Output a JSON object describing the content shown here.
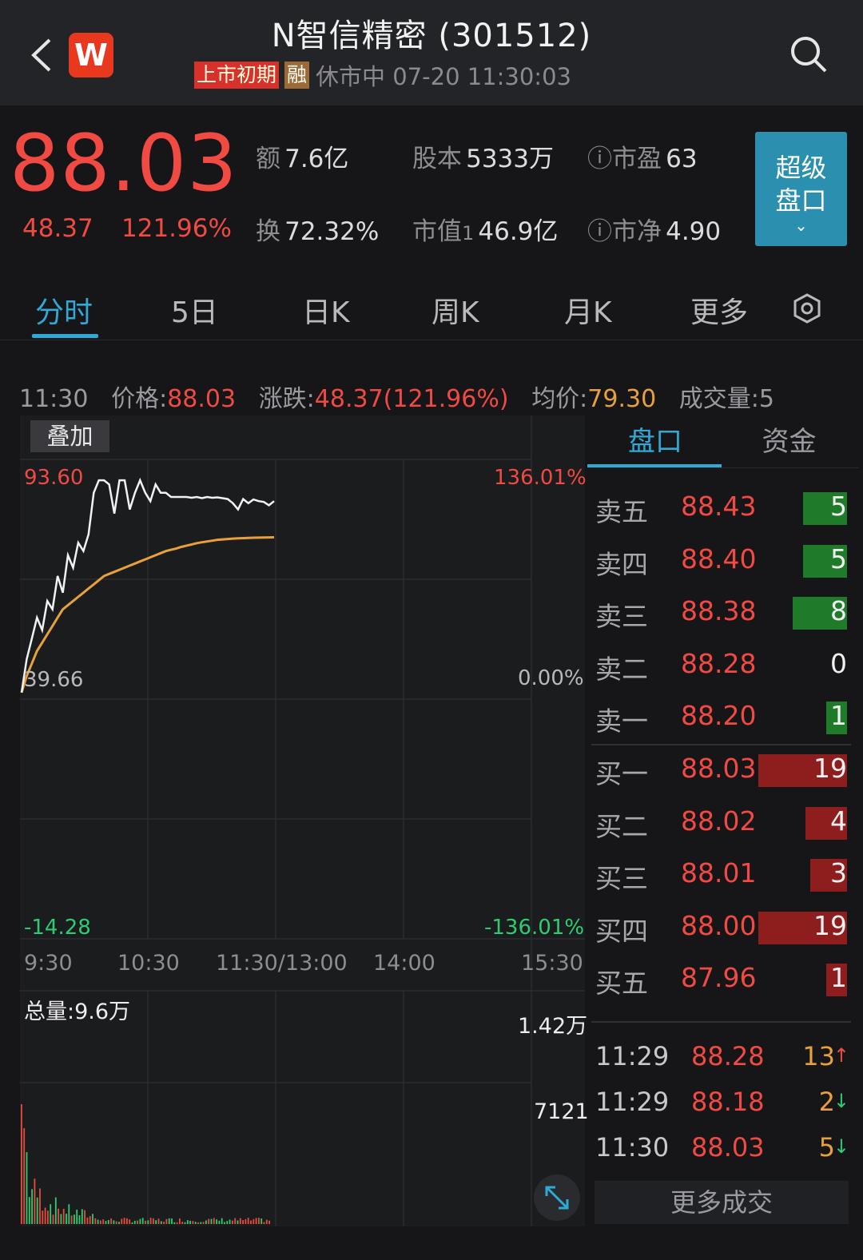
{
  "header": {
    "title": "N智信精密 (301512)",
    "logo_text": "W",
    "tag_listing": "上市初期",
    "tag_margin": "融",
    "market_status": "休市中 07-20 11:30:03"
  },
  "quote": {
    "price": "88.03",
    "change": "48.37",
    "change_pct": "121.96%",
    "amount_label": "额",
    "amount": "7.6亿",
    "share_label": "股本",
    "share": "5333万",
    "pe_label": "市盈",
    "pe": "63",
    "turnover_label": "换",
    "turnover": "72.32%",
    "mktcap_label": "市值",
    "mktcap_sup": "1",
    "mktcap": "46.9亿",
    "pb_label": "市净",
    "pb": "4.90",
    "super_btn": "超级盘口"
  },
  "tabs": [
    "分时",
    "5日",
    "日K",
    "周K",
    "月K",
    "更多"
  ],
  "detail": {
    "time": "11:30",
    "price_label": "价格:",
    "price": "88.03",
    "chg_label": "涨跌:",
    "chg": "48.37(121.96%)",
    "avg_label": "均价:",
    "avg": "79.30",
    "vol_label": "成交量:",
    "vol": "5"
  },
  "chart": {
    "overlay_btn": "叠加",
    "y_top": "93.60",
    "y_mid": "39.66",
    "y_bot": "-14.28",
    "pct_top": "136.01%",
    "pct_mid": "0.00%",
    "pct_bot": "-136.01%",
    "x_labels": [
      "9:30",
      "10:30",
      "11:30/13:00",
      "14:00",
      "15:30"
    ],
    "total_volume": "总量:9.6万",
    "vol_top": "1.42万",
    "vol_mid": "7121"
  },
  "chart_data": {
    "type": "line",
    "series": [
      {
        "values": [
          42,
          50,
          55,
          60,
          57,
          64,
          62,
          70,
          66,
          75,
          72,
          78,
          76,
          80,
          90,
          93,
          93,
          92,
          85,
          93,
          93,
          86,
          90,
          93,
          90,
          88,
          92,
          90,
          90,
          89,
          89,
          89,
          89,
          88.8,
          89,
          88.7,
          89,
          88.8,
          88.9,
          88.7,
          88.5,
          87.5,
          86,
          88.5,
          87.5,
          88.4,
          88,
          87.8,
          87,
          88
        ]
      },
      {
        "values": [
          42,
          46,
          49,
          52,
          54,
          56,
          58,
          60,
          62,
          63,
          64,
          65,
          66,
          67,
          68,
          69,
          70,
          70.5,
          71,
          71.5,
          72,
          72.5,
          73,
          73.5,
          74,
          74.5,
          75,
          75.5,
          76,
          76.3,
          76.6,
          77,
          77.3,
          77.6,
          77.9,
          78.1,
          78.3,
          78.5,
          78.7,
          78.8,
          78.9,
          79,
          79.05,
          79.1,
          79.15,
          79.2,
          79.22,
          79.25,
          79.28,
          79.3
        ]
      }
    ],
    "ylim": [
      -14.28,
      93.6
    ]
  },
  "book": {
    "tab_active": "盘口",
    "tab_other": "资金",
    "asks": [
      {
        "name": "卖五",
        "price": "88.43",
        "vol": "5",
        "frac": 0.17
      },
      {
        "name": "卖四",
        "price": "88.40",
        "vol": "5",
        "frac": 0.17
      },
      {
        "name": "卖三",
        "price": "88.38",
        "vol": "8",
        "frac": 0.21
      },
      {
        "name": "卖二",
        "price": "88.28",
        "vol": "0",
        "frac": 0
      },
      {
        "name": "卖一",
        "price": "88.20",
        "vol": "1",
        "frac": 0.08
      }
    ],
    "bids": [
      {
        "name": "买一",
        "price": "88.03",
        "vol": "19",
        "frac": 0.34
      },
      {
        "name": "买二",
        "price": "88.02",
        "vol": "4",
        "frac": 0.16
      },
      {
        "name": "买三",
        "price": "88.01",
        "vol": "3",
        "frac": 0.14
      },
      {
        "name": "买四",
        "price": "88.00",
        "vol": "19",
        "frac": 0.34
      },
      {
        "name": "买五",
        "price": "87.96",
        "vol": "1",
        "frac": 0.08
      }
    ],
    "trades": [
      {
        "time": "11:29",
        "price": "88.28",
        "vol": "13",
        "dir": "↑"
      },
      {
        "time": "11:29",
        "price": "88.18",
        "vol": "2",
        "dir": "↓"
      },
      {
        "time": "11:30",
        "price": "88.03",
        "vol": "5",
        "dir": "↓"
      }
    ],
    "more_trades": "更多成交"
  },
  "colors": {
    "up": "#f04a42",
    "down": "#2ecc71",
    "accent": "#2fa9d6",
    "avg_line": "#e8a13a"
  }
}
